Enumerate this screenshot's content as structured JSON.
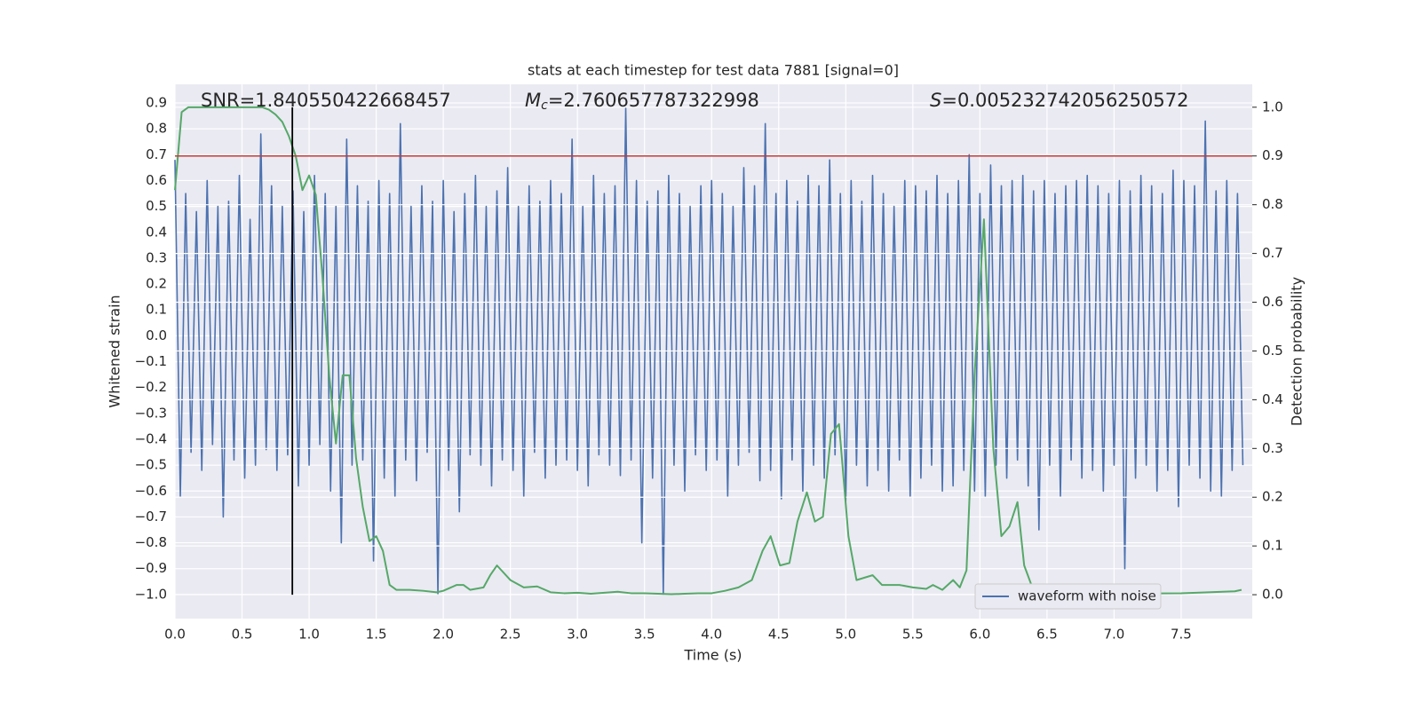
{
  "chart_data": {
    "type": "line",
    "title": "stats at each timestep for test data 7881 [signal=0]",
    "xlabel": "Time (s)",
    "ylabel": "Whitened strain",
    "y2label": "Detection probability",
    "grid": true,
    "legend": "lower right",
    "xlim": [
      0,
      8.03
    ],
    "ylim": [
      -1.093,
      0.972
    ],
    "y2lim": [
      -0.049,
      1.047
    ],
    "xticks": [
      {
        "value": 0,
        "label": "0.0"
      },
      0.5,
      {
        "value": 1,
        "label": "1.0"
      },
      1.5,
      {
        "value": 2,
        "label": "2.0"
      },
      2.5,
      {
        "value": 3,
        "label": "3.0"
      },
      3.5,
      {
        "value": 4,
        "label": "4.0"
      },
      4.5,
      {
        "value": 5,
        "label": "5.0"
      },
      5.5,
      {
        "value": 6,
        "label": "6.0"
      },
      6.5,
      {
        "value": 7,
        "label": "7.0"
      },
      7.5
    ],
    "yticks": [
      {
        "value": -1.0,
        "label": "−1.0"
      },
      {
        "value": -0.9,
        "label": "−0.9"
      },
      {
        "value": -0.8,
        "label": "−0.8"
      },
      {
        "value": -0.7,
        "label": "−0.7"
      },
      {
        "value": -0.6,
        "label": "−0.6"
      },
      {
        "value": -0.5,
        "label": "−0.5"
      },
      {
        "value": -0.4,
        "label": "−0.4"
      },
      {
        "value": -0.3,
        "label": "−0.3"
      },
      {
        "value": -0.2,
        "label": "−0.2"
      },
      {
        "value": -0.1,
        "label": "−0.1"
      },
      {
        "value": 0,
        "label": "0.0"
      },
      0.1,
      0.2,
      0.3,
      0.4,
      0.5,
      0.6,
      0.7,
      0.8,
      0.9
    ],
    "y2ticks": [
      {
        "value": 0,
        "label": "0.0"
      },
      0.1,
      0.2,
      0.3,
      0.4,
      0.5,
      0.6,
      0.7,
      0.8,
      0.9,
      {
        "value": 1,
        "label": "1.0"
      }
    ],
    "annotations": [
      {
        "text": "SNR=1.840550422668457"
      },
      {
        "symbol": "M",
        "subscript": "c",
        "text": "=2.760657787322998"
      },
      {
        "symbol": "S",
        "text": "=0.005232742056250572"
      }
    ],
    "hlines": [
      {
        "y": 0.9,
        "axis": "y2",
        "color": "#c03b3b"
      }
    ],
    "vlines": [
      {
        "x": 0.875,
        "ymin": 0,
        "ymax": 1,
        "axis": "y2",
        "color": "#000000"
      }
    ],
    "series": [
      {
        "name": "waveform with noise",
        "color": "#4c72b0",
        "x": [
          0,
          0.04,
          0.08,
          0.12,
          0.16,
          0.2,
          0.24,
          0.28,
          0.32,
          0.36,
          0.4,
          0.44,
          0.48,
          0.52,
          0.56,
          0.6,
          0.64,
          0.68,
          0.72,
          0.76,
          0.8,
          0.84,
          0.88,
          0.92,
          0.96,
          1.0,
          1.04,
          1.08,
          1.12,
          1.16,
          1.2,
          1.24,
          1.28,
          1.32,
          1.36,
          1.4,
          1.44,
          1.48,
          1.52,
          1.56,
          1.6,
          1.64,
          1.68,
          1.72,
          1.76,
          1.8,
          1.84,
          1.88,
          1.92,
          1.96,
          2.0,
          2.04,
          2.08,
          2.12,
          2.16,
          2.2,
          2.24,
          2.28,
          2.32,
          2.36,
          2.4,
          2.44,
          2.48,
          2.52,
          2.56,
          2.6,
          2.64,
          2.68,
          2.72,
          2.76,
          2.8,
          2.84,
          2.88,
          2.92,
          2.96,
          3.0,
          3.04,
          3.08,
          3.12,
          3.16,
          3.2,
          3.24,
          3.28,
          3.32,
          3.36,
          3.4,
          3.44,
          3.48,
          3.52,
          3.56,
          3.6,
          3.64,
          3.68,
          3.72,
          3.76,
          3.8,
          3.84,
          3.88,
          3.92,
          3.96,
          4.0,
          4.04,
          4.08,
          4.12,
          4.16,
          4.2,
          4.24,
          4.28,
          4.32,
          4.36,
          4.4,
          4.44,
          4.48,
          4.52,
          4.56,
          4.6,
          4.64,
          4.68,
          4.72,
          4.76,
          4.8,
          4.84,
          4.88,
          4.92,
          4.96,
          5.0,
          5.04,
          5.08,
          5.12,
          5.16,
          5.2,
          5.24,
          5.28,
          5.32,
          5.36,
          5.4,
          5.44,
          5.48,
          5.52,
          5.56,
          5.6,
          5.64,
          5.68,
          5.72,
          5.76,
          5.8,
          5.84,
          5.88,
          5.92,
          5.96,
          6.0,
          6.04,
          6.08,
          6.12,
          6.16,
          6.2,
          6.24,
          6.28,
          6.32,
          6.36,
          6.4,
          6.44,
          6.48,
          6.52,
          6.56,
          6.6,
          6.64,
          6.68,
          6.72,
          6.76,
          6.8,
          6.84,
          6.88,
          6.92,
          6.96,
          7.0,
          7.04,
          7.08,
          7.12,
          7.16,
          7.2,
          7.24,
          7.28,
          7.32,
          7.36,
          7.4,
          7.44,
          7.48,
          7.52,
          7.56,
          7.6,
          7.64,
          7.68,
          7.72,
          7.76,
          7.8,
          7.84,
          7.88,
          7.92,
          7.96
        ],
        "values": [
          0.68,
          -0.62,
          0.55,
          -0.45,
          0.48,
          -0.52,
          0.6,
          -0.42,
          0.5,
          -0.7,
          0.52,
          -0.48,
          0.62,
          -0.55,
          0.45,
          -0.5,
          0.78,
          -0.44,
          0.58,
          -0.52,
          0.5,
          -0.46,
          0.56,
          -0.58,
          0.48,
          -0.5,
          0.62,
          -0.42,
          0.55,
          -0.6,
          0.5,
          -0.8,
          0.76,
          -0.5,
          0.58,
          -0.48,
          0.52,
          -0.87,
          0.6,
          -0.55,
          0.55,
          -0.62,
          0.82,
          -0.48,
          0.5,
          -0.56,
          0.58,
          -0.45,
          0.52,
          -1.0,
          0.6,
          -0.52,
          0.48,
          -0.68,
          0.55,
          -0.46,
          0.62,
          -0.5,
          0.5,
          -0.58,
          0.56,
          -0.48,
          0.65,
          -0.52,
          0.5,
          -0.62,
          0.58,
          -0.45,
          0.52,
          -0.55,
          0.6,
          -0.5,
          0.55,
          -0.48,
          0.76,
          -0.52,
          0.5,
          -0.58,
          0.62,
          -0.46,
          0.55,
          -0.5,
          0.58,
          -0.54,
          0.88,
          -0.48,
          0.6,
          -0.8,
          0.52,
          -0.55,
          0.56,
          -1.0,
          0.62,
          -0.5,
          0.55,
          -0.6,
          0.5,
          -0.46,
          0.58,
          -0.52,
          0.6,
          -0.48,
          0.55,
          -0.62,
          0.5,
          -0.5,
          0.65,
          -0.45,
          0.58,
          -0.56,
          0.82,
          -0.52,
          0.55,
          -0.63,
          0.6,
          -0.48,
          0.52,
          -0.6,
          0.62,
          -0.5,
          0.58,
          -0.55,
          0.68,
          -0.46,
          0.55,
          -0.64,
          0.6,
          -0.5,
          0.52,
          -0.58,
          0.62,
          -0.52,
          0.55,
          -0.6,
          0.5,
          -0.48,
          0.6,
          -0.62,
          0.58,
          -0.55,
          0.56,
          -0.5,
          0.62,
          -0.6,
          0.55,
          -0.58,
          0.6,
          -0.52,
          0.7,
          -0.6,
          0.55,
          -0.62,
          0.66,
          -0.5,
          0.58,
          -0.55,
          0.6,
          -0.48,
          0.62,
          -0.58,
          0.56,
          -0.75,
          0.6,
          -0.5,
          0.55,
          -0.62,
          0.58,
          -0.48,
          0.6,
          -0.55,
          0.62,
          -0.52,
          0.58,
          -0.6,
          0.55,
          -0.5,
          0.6,
          -0.9,
          0.56,
          -0.55,
          0.62,
          -0.5,
          0.58,
          -0.6,
          0.55,
          -0.52,
          0.64,
          -0.66,
          0.6,
          -0.5,
          0.58,
          -0.55,
          0.83,
          -0.6,
          0.56,
          -0.62,
          0.6,
          -0.52,
          0.55,
          -0.5
        ]
      },
      {
        "color": "#55a868",
        "axis": "y2",
        "x": [
          0,
          0.05,
          0.1,
          0.2,
          0.3,
          0.4,
          0.5,
          0.6,
          0.65,
          0.7,
          0.75,
          0.8,
          0.85,
          0.9,
          0.95,
          1.0,
          1.05,
          1.1,
          1.15,
          1.2,
          1.25,
          1.3,
          1.35,
          1.4,
          1.45,
          1.5,
          1.55,
          1.6,
          1.65,
          1.75,
          1.85,
          1.95,
          2.0,
          2.1,
          2.15,
          2.2,
          2.3,
          2.35,
          2.4,
          2.5,
          2.6,
          2.7,
          2.8,
          2.9,
          3.0,
          3.1,
          3.2,
          3.3,
          3.4,
          3.5,
          3.6,
          3.7,
          3.8,
          3.9,
          4.0,
          4.1,
          4.2,
          4.3,
          4.38,
          4.44,
          4.51,
          4.58,
          4.64,
          4.71,
          4.77,
          4.83,
          4.89,
          4.95,
          5.02,
          5.08,
          5.14,
          5.2,
          5.27,
          5.4,
          5.5,
          5.6,
          5.65,
          5.72,
          5.8,
          5.85,
          5.9,
          5.96,
          6.03,
          6.1,
          6.16,
          6.22,
          6.28,
          6.33,
          6.4,
          6.5,
          7.0,
          7.5,
          7.9,
          7.95
        ],
        "values": [
          0.83,
          0.99,
          1.0,
          1.0,
          1.0,
          1.0,
          1.0,
          1.0,
          1.0,
          0.995,
          0.985,
          0.97,
          0.94,
          0.9,
          0.83,
          0.86,
          0.82,
          0.65,
          0.45,
          0.31,
          0.45,
          0.45,
          0.28,
          0.18,
          0.11,
          0.12,
          0.09,
          0.02,
          0.01,
          0.01,
          0.008,
          0.005,
          0.008,
          0.02,
          0.02,
          0.01,
          0.015,
          0.04,
          0.06,
          0.03,
          0.015,
          0.017,
          0.005,
          0.003,
          0.004,
          0.002,
          0.004,
          0.006,
          0.003,
          0.003,
          0.002,
          0.001,
          0.002,
          0.003,
          0.003,
          0.008,
          0.015,
          0.03,
          0.09,
          0.12,
          0.06,
          0.065,
          0.15,
          0.21,
          0.15,
          0.16,
          0.33,
          0.35,
          0.12,
          0.03,
          0.035,
          0.04,
          0.02,
          0.02,
          0.015,
          0.012,
          0.02,
          0.01,
          0.03,
          0.015,
          0.05,
          0.45,
          0.77,
          0.3,
          0.12,
          0.14,
          0.19,
          0.06,
          0.008,
          0.002,
          0.002,
          0.003,
          0.007,
          0.01
        ]
      }
    ]
  }
}
